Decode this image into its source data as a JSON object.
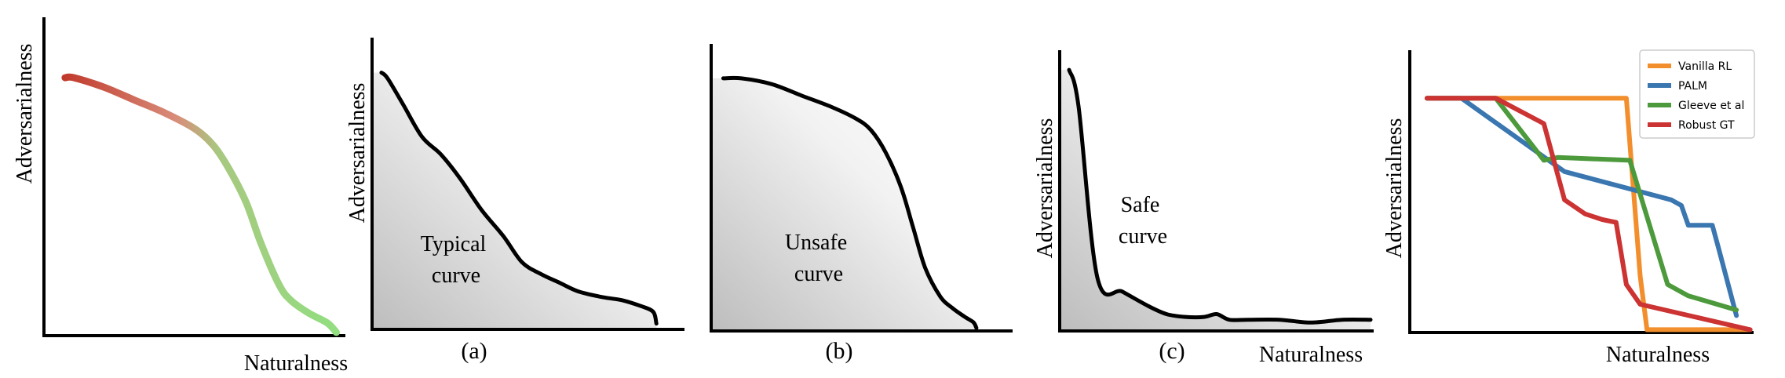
{
  "panels": [
    {
      "id": "gradient",
      "ylabel": "Adversarialness",
      "xlabel": "Naturalness",
      "caption": "",
      "label": "",
      "chart_data": {
        "type": "line",
        "xlim": [
          0,
          1
        ],
        "ylim": [
          0,
          1
        ],
        "xlabel": "Naturalness",
        "ylabel": "Adversarialness",
        "series": [
          {
            "x": [
              0.07,
              0.1,
              0.2,
              0.3,
              0.4,
              0.5,
              0.56,
              0.61,
              0.67,
              0.72,
              0.78,
              0.82,
              0.88,
              0.94,
              0.97
            ],
            "y": [
              0.81,
              0.81,
              0.78,
              0.74,
              0.7,
              0.65,
              0.6,
              0.53,
              0.42,
              0.29,
              0.16,
              0.11,
              0.07,
              0.04,
              0.01
            ]
          }
        ],
        "gradient": [
          "#c0392b",
          "#90e080"
        ]
      }
    },
    {
      "id": "a",
      "ylabel": "Adversarialness",
      "xlabel": "",
      "caption": "(a)",
      "label": "Typical\ncurve",
      "chart_data": {
        "type": "line",
        "xlim": [
          0,
          1
        ],
        "ylim": [
          0,
          1
        ],
        "series": [
          {
            "x": [
              0.03,
              0.05,
              0.1,
              0.16,
              0.22,
              0.28,
              0.35,
              0.42,
              0.48,
              0.54,
              0.6,
              0.66,
              0.74,
              0.8,
              0.86,
              0.9,
              0.91
            ],
            "y": [
              0.88,
              0.86,
              0.77,
              0.66,
              0.6,
              0.52,
              0.41,
              0.32,
              0.23,
              0.19,
              0.16,
              0.13,
              0.11,
              0.1,
              0.08,
              0.06,
              0.02
            ]
          }
        ],
        "fill": true
      }
    },
    {
      "id": "b",
      "ylabel": "",
      "xlabel": "",
      "caption": "(b)",
      "label": "Unsafe\ncurve",
      "chart_data": {
        "type": "line",
        "xlim": [
          0,
          1
        ],
        "ylim": [
          0,
          1
        ],
        "series": [
          {
            "x": [
              0.04,
              0.1,
              0.2,
              0.3,
              0.4,
              0.48,
              0.53,
              0.58,
              0.63,
              0.67,
              0.71,
              0.76,
              0.8,
              0.84,
              0.87,
              0.88
            ],
            "y": [
              0.88,
              0.88,
              0.86,
              0.82,
              0.78,
              0.74,
              0.7,
              0.62,
              0.5,
              0.36,
              0.22,
              0.12,
              0.08,
              0.05,
              0.03,
              0.01
            ]
          }
        ],
        "fill": true
      }
    },
    {
      "id": "c",
      "ylabel": "Adversarialness",
      "xlabel": "Naturalness",
      "caption": "(c)",
      "label": "Safe\ncurve",
      "chart_data": {
        "type": "line",
        "xlim": [
          0,
          1
        ],
        "ylim": [
          0,
          1
        ],
        "series": [
          {
            "x": [
              0.03,
              0.06,
              0.12,
              0.2,
              0.28,
              0.34,
              0.4,
              0.46,
              0.5,
              0.54,
              0.6,
              0.7,
              0.8,
              0.9,
              0.99
            ],
            "y": [
              0.93,
              0.8,
              0.19,
              0.14,
              0.09,
              0.06,
              0.05,
              0.05,
              0.06,
              0.04,
              0.04,
              0.04,
              0.03,
              0.04,
              0.04
            ]
          }
        ],
        "fill": true
      }
    },
    {
      "id": "methods",
      "ylabel": "Adversarialness",
      "xlabel": "Naturalness",
      "caption": "",
      "label": "",
      "chart_data": {
        "type": "line",
        "xlim": [
          0,
          1
        ],
        "ylim": [
          0,
          1
        ],
        "xlabel": "Naturalness",
        "ylabel": "Adversarialness",
        "legend": "top-right",
        "series": [
          {
            "name": "Vanilla RL",
            "color": "#f28e2b",
            "x": [
              0.05,
              0.63,
              0.67,
              0.69,
              0.99
            ],
            "y": [
              0.83,
              0.83,
              0.2,
              0.01,
              0.01
            ]
          },
          {
            "name": "PALM",
            "color": "#3a76b0",
            "x": [
              0.05,
              0.15,
              0.45,
              0.76,
              0.79,
              0.81,
              0.88,
              0.9,
              0.95
            ],
            "y": [
              0.83,
              0.83,
              0.57,
              0.47,
              0.45,
              0.38,
              0.38,
              0.29,
              0.06
            ]
          },
          {
            "name": "Gleeve et al",
            "color": "#4c9a3c",
            "x": [
              0.05,
              0.25,
              0.39,
              0.43,
              0.64,
              0.75,
              0.81,
              0.95
            ],
            "y": [
              0.83,
              0.83,
              0.61,
              0.62,
              0.61,
              0.17,
              0.13,
              0.08
            ]
          },
          {
            "name": "Robust GT",
            "color": "#cc3333",
            "x": [
              0.05,
              0.25,
              0.39,
              0.45,
              0.51,
              0.56,
              0.6,
              0.63,
              0.67,
              0.99
            ],
            "y": [
              0.83,
              0.83,
              0.74,
              0.47,
              0.42,
              0.4,
              0.39,
              0.17,
              0.1,
              0.01
            ]
          }
        ]
      }
    }
  ]
}
